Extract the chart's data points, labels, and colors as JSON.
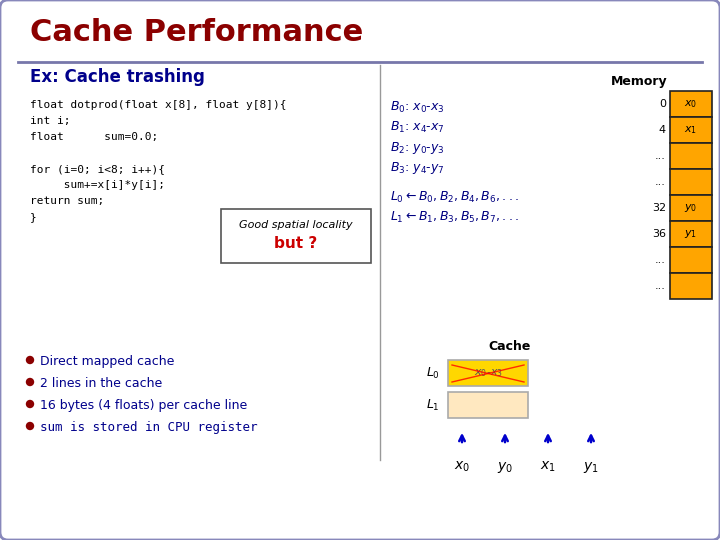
{
  "title": "Cache Performance",
  "subtitle": "Ex: Cache trashing",
  "title_color": "#8B0000",
  "subtitle_color": "#00008B",
  "bullet_color": "#00008B",
  "bullet_dot_color": "#8B0000",
  "box_text_line1": "Good spatial locality",
  "box_text_line2": "but ?",
  "memory_label": "Memory",
  "memory_labels_left": [
    "0",
    "4",
    "...",
    "...",
    "32",
    "36",
    "...",
    "..."
  ],
  "memory_cells_text": [
    "x0",
    "x1",
    "",
    "",
    "y0",
    "y1",
    "",
    ""
  ],
  "memory_cell_color": "#FFA500",
  "cache_label": "Cache",
  "cache_cell_color_0": "#FFD700",
  "cache_cell_color_1": "#FFE8C0",
  "access_labels": [
    "x0",
    "y0",
    "x1",
    "y1"
  ],
  "code_color": "#000000",
  "block_color": "#000080",
  "mapping_color": "#000080"
}
